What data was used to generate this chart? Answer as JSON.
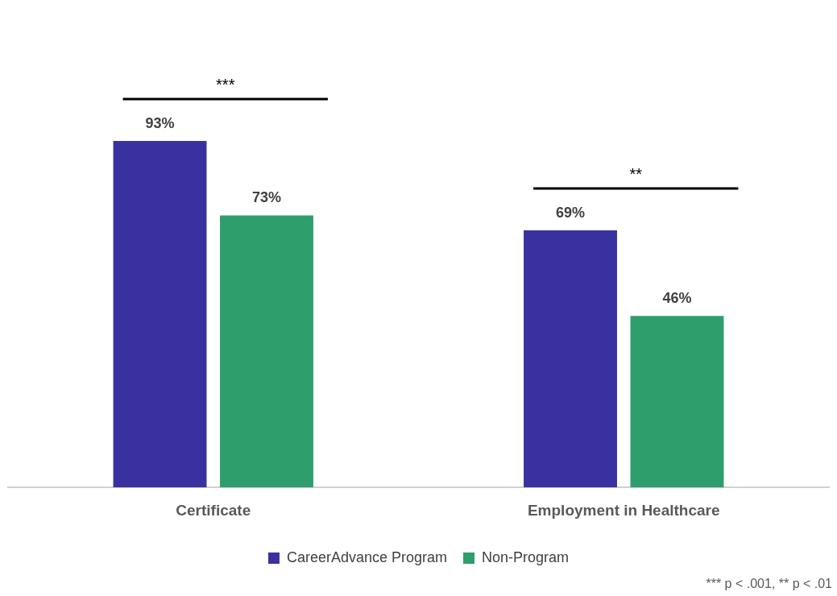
{
  "chart_data": {
    "type": "bar",
    "categories": [
      "Certificate",
      "Employment in Healthcare"
    ],
    "series": [
      {
        "name": "CareerAdvance Program",
        "color": "#3a31a0",
        "values": [
          93,
          69
        ],
        "value_labels": [
          "93%",
          "69%"
        ]
      },
      {
        "name": "Non-Program",
        "color": "#2e9e6c",
        "values": [
          73,
          46
        ],
        "value_labels": [
          "73%",
          "46%"
        ]
      }
    ],
    "annotations": [
      "***",
      "**",
      "*** p < .001, ** p < .01"
    ],
    "legend": "bottom",
    "grid": false
  }
}
